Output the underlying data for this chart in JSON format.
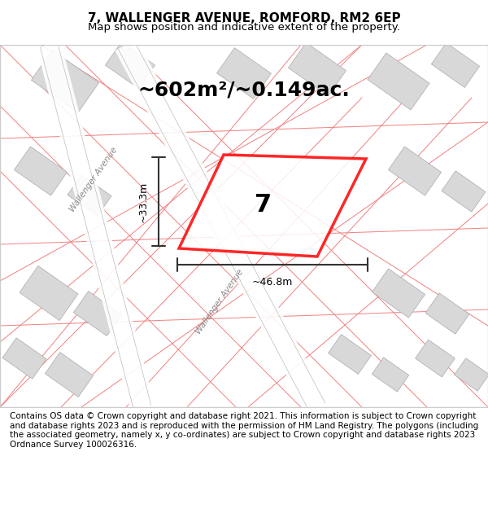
{
  "title_line1": "7, WALLENGER AVENUE, ROMFORD, RM2 6EP",
  "title_line2": "Map shows position and indicative extent of the property.",
  "area_text": "~602m²/~0.149ac.",
  "property_number": "7",
  "width_label": "~46.8m",
  "height_label": "~33.3m",
  "street_label1": "Wallenger Avenue",
  "street_label2": "Wallenger Avenue",
  "footer_text": "Contains OS data © Crown copyright and database right 2021. This information is subject to Crown copyright and database rights 2023 and is reproduced with the permission of HM Land Registry. The polygons (including the associated geometry, namely x, y co-ordinates) are subject to Crown copyright and database rights 2023 Ordnance Survey 100026316.",
  "bg_color": "#f5f5f5",
  "map_bg": "#f0eeea",
  "road_color": "#ffffff",
  "building_color": "#d8d8d8",
  "plot_outline_color": "#ff0000",
  "plot_fill_color": "#ffffff",
  "plot_fill_alpha": 0.3,
  "dim_line_color": "#333333",
  "road_line_color": "#f08080",
  "title_fontsize": 11,
  "subtitle_fontsize": 9.5,
  "area_fontsize": 18,
  "label_fontsize": 9,
  "footer_fontsize": 7.5
}
